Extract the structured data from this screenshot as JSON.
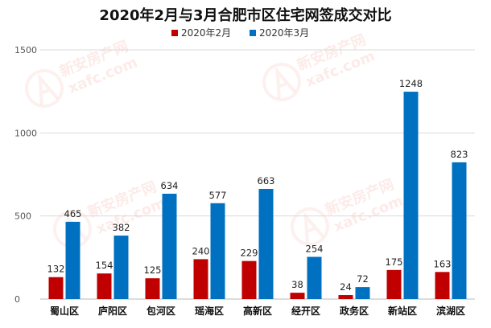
{
  "chart_data": {
    "type": "bar",
    "title": "2020年2月与3月合肥市区住宅网签成交对比",
    "categories": [
      "蜀山区",
      "庐阳区",
      "包河区",
      "瑶海区",
      "高新区",
      "经开区",
      "政务区",
      "新站区",
      "滨湖区"
    ],
    "series": [
      {
        "name": "2020年2月",
        "color": "#c00000",
        "values": [
          132,
          154,
          125,
          240,
          229,
          38,
          24,
          175,
          163
        ]
      },
      {
        "name": "2020年3月",
        "color": "#0070c0",
        "values": [
          465,
          382,
          634,
          577,
          663,
          254,
          72,
          1248,
          823
        ]
      }
    ],
    "ylim": [
      0,
      1500
    ],
    "yticks": [
      0,
      500,
      1000,
      1500
    ],
    "xlabel": "",
    "ylabel": "",
    "grid": true,
    "legend": "top-center",
    "data_labels": true
  },
  "watermark": {
    "brand_cn": "新安房产网",
    "brand_en": "xafc.com",
    "color": "#f6b3a8"
  }
}
